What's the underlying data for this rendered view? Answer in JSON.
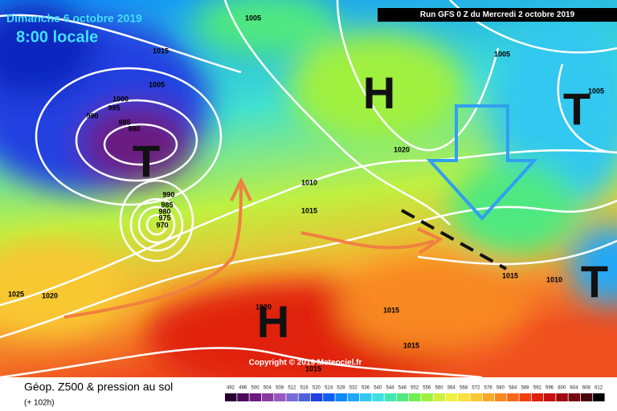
{
  "header": {
    "date": "Dimanche 6 octobre 2019",
    "time": "8:00 locale",
    "run": "Run GFS 0 Z du Mercredi 2 octobre 2019"
  },
  "isobar_labels": [
    "1005",
    "1015",
    "1005",
    "1000",
    "995",
    "990",
    "985",
    "980",
    "990",
    "985",
    "980",
    "975",
    "970",
    "1005",
    "1005",
    "1020",
    "1010",
    "1015",
    "1015",
    "1010",
    "1025",
    "1020",
    "1020",
    "1015",
    "1015",
    "1015"
  ],
  "pressure_centers": [
    "H",
    "T",
    "T",
    "H",
    "T"
  ],
  "copyright": "Copyright © 2019 Meteociel.fr",
  "footer": {
    "title": "Géop. Z500 & pression au sol",
    "lead": "(+ 102h)"
  },
  "scale": {
    "values": [
      492,
      496,
      500,
      504,
      508,
      512,
      516,
      520,
      524,
      528,
      532,
      536,
      540,
      544,
      548,
      552,
      556,
      560,
      564,
      568,
      572,
      576,
      580,
      584,
      588,
      592,
      596,
      600,
      604,
      608,
      612
    ],
    "colors": [
      "#2a0030",
      "#4b0a5a",
      "#6a1a80",
      "#8a3aa0",
      "#9a58c0",
      "#7a6ad8",
      "#5060e0",
      "#2040e0",
      "#1060f0",
      "#1088f8",
      "#20a8f8",
      "#30c8f0",
      "#40e0e0",
      "#40e8b0",
      "#50e880",
      "#70f050",
      "#a0f040",
      "#d0f040",
      "#f0f040",
      "#f8e040",
      "#f8c830",
      "#f8a828",
      "#f88820",
      "#f86818",
      "#f04010",
      "#e02010",
      "#c81010",
      "#a00810",
      "#780810",
      "#480408",
      "#000000"
    ]
  }
}
